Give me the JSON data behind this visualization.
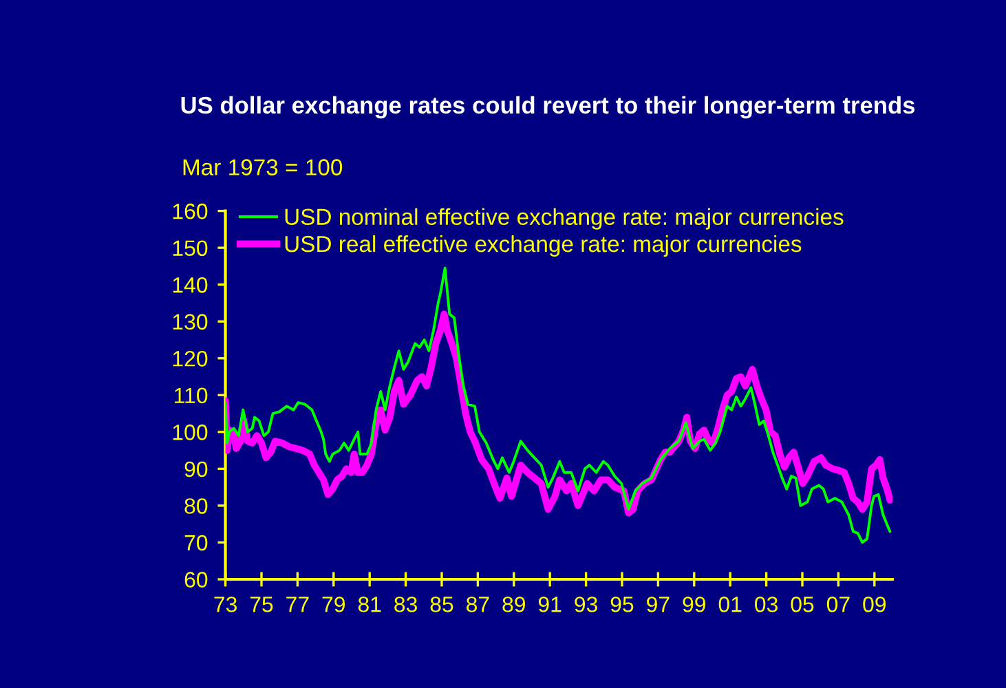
{
  "chart_data": {
    "type": "line",
    "title": "US dollar exchange rates could revert to their longer-term trends",
    "ylabel": "Mar 1973 = 100",
    "xlim": [
      1973,
      2010
    ],
    "xticks": [
      {
        "value": 1973,
        "label": "73"
      },
      {
        "value": 1975,
        "label": "75"
      },
      {
        "value": 1977,
        "label": "77"
      },
      {
        "value": 1979,
        "label": "79"
      },
      {
        "value": 1981,
        "label": "81"
      },
      {
        "value": 1983,
        "label": "83"
      },
      {
        "value": 1985,
        "label": "85"
      },
      {
        "value": 1987,
        "label": "87"
      },
      {
        "value": 1989,
        "label": "89"
      },
      {
        "value": 1991,
        "label": "91"
      },
      {
        "value": 1993,
        "label": "93"
      },
      {
        "value": 1995,
        "label": "95"
      },
      {
        "value": 1997,
        "label": "97"
      },
      {
        "value": 1999,
        "label": "99"
      },
      {
        "value": 2001,
        "label": "01"
      },
      {
        "value": 2003,
        "label": "03"
      },
      {
        "value": 2005,
        "label": "05"
      },
      {
        "value": 2007,
        "label": "07"
      },
      {
        "value": 2009,
        "label": "09"
      }
    ],
    "ylim": [
      60,
      160
    ],
    "yticks": [
      60,
      70,
      80,
      90,
      100,
      110,
      120,
      130,
      140,
      150,
      160
    ],
    "legend": "top left",
    "series": [
      {
        "name": "USD nominal effective exchange rate: major currencies",
        "color": "#00ff00",
        "x": [
          1973.0,
          1973.09,
          1973.22,
          1973.47,
          1973.73,
          1973.98,
          1974.23,
          1974.49,
          1974.62,
          1974.87,
          1975.13,
          1975.38,
          1975.63,
          1976.0,
          1976.4,
          1976.78,
          1977.04,
          1977.42,
          1977.8,
          1978.05,
          1978.31,
          1978.44,
          1978.56,
          1978.77,
          1978.95,
          1979.33,
          1979.58,
          1979.84,
          1980.09,
          1980.35,
          1980.47,
          1980.85,
          1981.1,
          1981.36,
          1981.61,
          1981.86,
          1982.12,
          1982.37,
          1982.62,
          1982.88,
          1983.13,
          1983.52,
          1983.77,
          1984.03,
          1984.29,
          1984.54,
          1984.8,
          1984.92,
          1985.18,
          1985.43,
          1985.69,
          1985.94,
          1986.2,
          1986.45,
          1986.83,
          1987.09,
          1987.47,
          1987.85,
          1988.11,
          1988.36,
          1988.74,
          1988.99,
          1989.38,
          1989.76,
          1990.14,
          1990.52,
          1990.9,
          1991.16,
          1991.54,
          1991.79,
          1992.18,
          1992.56,
          1992.94,
          1993.19,
          1993.57,
          1993.96,
          1994.21,
          1994.59,
          1994.97,
          1995.36,
          1995.74,
          1996.12,
          1996.63,
          1997.14,
          1997.65,
          1998.15,
          1998.54,
          1998.92,
          1999.3,
          1999.55,
          1999.89,
          2000.19,
          2000.44,
          2000.83,
          2001.08,
          2001.34,
          2001.59,
          2001.84,
          2002.15,
          2002.35,
          2002.61,
          2002.86,
          2003.12,
          2003.37,
          2003.63,
          2003.88,
          2004.13,
          2004.39,
          2004.64,
          2004.9,
          2005.28,
          2005.53,
          2005.92,
          2006.17,
          2006.42,
          2006.81,
          2007.19,
          2007.57,
          2007.82,
          2008.08,
          2008.33,
          2008.59,
          2008.84,
          2008.97,
          2009.22,
          2009.48,
          2009.73,
          2009.86
        ],
        "values": [
          108,
          97,
          100,
          101,
          99,
          106,
          100,
          101,
          104,
          103,
          99,
          100,
          105,
          105.5,
          107,
          106,
          108,
          107.5,
          106,
          103,
          100,
          98,
          94,
          92,
          94,
          95,
          97,
          95,
          97.5,
          100,
          94,
          94,
          97,
          106,
          111,
          106,
          112.5,
          117.5,
          122,
          117,
          119,
          124,
          123,
          125,
          122,
          127.5,
          135,
          137.5,
          144.5,
          132,
          131,
          121,
          112.5,
          107.5,
          107,
          100,
          97,
          92.5,
          90,
          93,
          89,
          92,
          97.5,
          95,
          93,
          91,
          85,
          87.5,
          92,
          89,
          89,
          84,
          90,
          91,
          89,
          92,
          91,
          88,
          86,
          79,
          84,
          86,
          87.5,
          92.5,
          95.5,
          97.5,
          102.5,
          95.5,
          97.5,
          98,
          95,
          97,
          100,
          107,
          106,
          109.5,
          107,
          109,
          112,
          108,
          102,
          103,
          99,
          94.5,
          91,
          87.5,
          84.5,
          88,
          87.5,
          80,
          81,
          84.5,
          85.5,
          84.5,
          81,
          82,
          81,
          77.5,
          73,
          72.5,
          70,
          71,
          80,
          82.5,
          83,
          77.5,
          74.5,
          73
        ]
      },
      {
        "name": "USD real effective exchange rate: major currencies",
        "color": "#ff00ff",
        "x": [
          1973.0,
          1973.09,
          1973.22,
          1973.42,
          1973.6,
          1973.85,
          1974.03,
          1974.23,
          1974.49,
          1974.75,
          1975.0,
          1975.25,
          1975.51,
          1975.76,
          1976.15,
          1976.53,
          1976.91,
          1977.29,
          1977.67,
          1977.93,
          1978.18,
          1978.44,
          1978.69,
          1978.95,
          1979.2,
          1979.46,
          1979.71,
          1979.97,
          1980.14,
          1980.35,
          1980.6,
          1980.85,
          1981.1,
          1981.36,
          1981.61,
          1981.86,
          1982.12,
          1982.37,
          1982.62,
          1982.88,
          1983.26,
          1983.64,
          1983.9,
          1984.16,
          1984.41,
          1984.67,
          1984.92,
          1985.13,
          1985.31,
          1985.56,
          1985.81,
          1986.07,
          1986.32,
          1986.58,
          1986.83,
          1987.21,
          1987.6,
          1987.98,
          1988.23,
          1988.61,
          1988.87,
          1989.38,
          1989.76,
          1990.14,
          1990.52,
          1990.9,
          1991.28,
          1991.54,
          1991.92,
          1992.18,
          1992.56,
          1993.07,
          1993.45,
          1993.83,
          1994.21,
          1994.59,
          1995.1,
          1995.36,
          1995.61,
          1995.86,
          1996.25,
          1996.63,
          1997.14,
          1997.39,
          1997.65,
          1997.9,
          1998.15,
          1998.41,
          1998.59,
          1998.79,
          1999.05,
          1999.3,
          1999.55,
          1999.81,
          2000.06,
          2000.32,
          2000.57,
          2000.83,
          2001.08,
          2001.34,
          2001.59,
          2001.84,
          2002.1,
          2002.23,
          2002.48,
          2002.73,
          2002.99,
          2003.24,
          2003.5,
          2003.75,
          2004.01,
          2004.26,
          2004.52,
          2004.77,
          2005.02,
          2005.28,
          2005.66,
          2006.04,
          2006.3,
          2006.68,
          2007.06,
          2007.32,
          2007.57,
          2007.82,
          2008.08,
          2008.33,
          2008.59,
          2008.84,
          2009.1,
          2009.3,
          2009.48,
          2009.73,
          2009.86
        ],
        "values": [
          108.5,
          95,
          100.5,
          100,
          95.5,
          97.5,
          103,
          97.5,
          97,
          99,
          97,
          93,
          94.5,
          97.5,
          97,
          96,
          95.5,
          95,
          94,
          91,
          89,
          87,
          83,
          84.5,
          87,
          88,
          90,
          89,
          94,
          89,
          89,
          91,
          94,
          102.5,
          106,
          100.5,
          104,
          111,
          114,
          107.5,
          110,
          114,
          115,
          112.5,
          117.5,
          124,
          127.5,
          132,
          127.5,
          124,
          120,
          112.5,
          105,
          100,
          97.5,
          92.5,
          90,
          85,
          82,
          87.5,
          82.5,
          91,
          89,
          87.5,
          86,
          79,
          82.5,
          87,
          84,
          86,
          80,
          86,
          84,
          87,
          87,
          85,
          84,
          78,
          79,
          84,
          86,
          87,
          92.5,
          94.5,
          94.5,
          96,
          97.5,
          100.5,
          104,
          97.5,
          95.5,
          99.5,
          100.5,
          97.5,
          97,
          101,
          106,
          110,
          111,
          114.5,
          115,
          112.5,
          115.5,
          117,
          112.5,
          109,
          106,
          100,
          99,
          94,
          90.5,
          93,
          94.5,
          90.5,
          86,
          88,
          92,
          93,
          91,
          90,
          89.5,
          89,
          86,
          82,
          81,
          79,
          81,
          90,
          91,
          92.5,
          87.5,
          84,
          81.5
        ]
      }
    ]
  }
}
